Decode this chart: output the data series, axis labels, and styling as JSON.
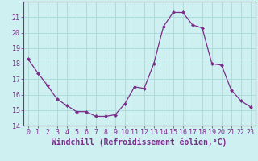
{
  "x": [
    0,
    1,
    2,
    3,
    4,
    5,
    6,
    7,
    8,
    9,
    10,
    11,
    12,
    13,
    14,
    15,
    16,
    17,
    18,
    19,
    20,
    21,
    22,
    23
  ],
  "y": [
    18.3,
    17.4,
    16.6,
    15.7,
    15.3,
    14.9,
    14.9,
    14.6,
    14.6,
    14.7,
    15.4,
    16.5,
    16.4,
    18.0,
    20.4,
    21.3,
    21.3,
    20.5,
    20.3,
    18.0,
    17.9,
    16.3,
    15.6,
    15.2
  ],
  "ylim": [
    14,
    22
  ],
  "yticks": [
    14,
    15,
    16,
    17,
    18,
    19,
    20,
    21
  ],
  "xticks": [
    0,
    1,
    2,
    3,
    4,
    5,
    6,
    7,
    8,
    9,
    10,
    11,
    12,
    13,
    14,
    15,
    16,
    17,
    18,
    19,
    20,
    21,
    22,
    23
  ],
  "xlabel": "Windchill (Refroidissement éolien,°C)",
  "line_color": "#7b2d8b",
  "marker": "D",
  "marker_size": 2.0,
  "bg_color": "#cff0f0",
  "grid_color": "#aadddd",
  "tick_color": "#7b2d8b",
  "label_color": "#7b2d8b",
  "axis_color": "#7b2d8b",
  "font_family": "monospace",
  "tick_fontsize": 6.0,
  "xlabel_fontsize": 7.0
}
